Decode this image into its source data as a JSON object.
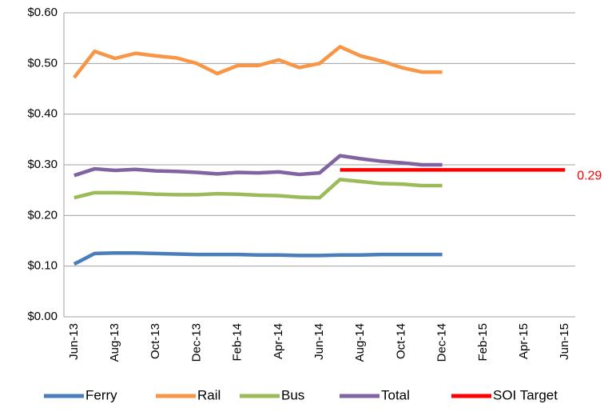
{
  "chart_data": {
    "type": "line",
    "categories": [
      "Jun-13",
      null,
      "Aug-13",
      null,
      "Oct-13",
      null,
      "Dec-13",
      null,
      "Feb-14",
      null,
      "Apr-14",
      null,
      "Jun-14",
      null,
      "Aug-14",
      null,
      "Oct-14",
      null,
      "Dec-14",
      null,
      "Feb-15",
      null,
      "Apr-15",
      null,
      "Jun-15"
    ],
    "series": [
      {
        "name": "Ferry",
        "color": "#4a7ebb",
        "values": [
          0.104,
          0.125,
          0.126,
          0.126,
          0.125,
          0.124,
          0.123,
          0.123,
          0.123,
          0.122,
          0.122,
          0.121,
          0.121,
          0.122,
          0.122,
          0.123,
          0.123,
          0.123,
          0.123,
          null,
          null,
          null,
          null,
          null,
          null
        ]
      },
      {
        "name": "Rail",
        "color": "#f79646",
        "values": [
          0.472,
          0.524,
          0.51,
          0.52,
          0.515,
          0.511,
          0.5,
          0.48,
          0.496,
          0.496,
          0.507,
          0.492,
          0.5,
          0.533,
          0.515,
          0.505,
          0.492,
          0.483,
          0.483,
          null,
          null,
          null,
          null,
          null,
          null
        ]
      },
      {
        "name": "Bus",
        "color": "#9bbb59",
        "values": [
          0.235,
          0.245,
          0.245,
          0.244,
          0.242,
          0.241,
          0.241,
          0.243,
          0.242,
          0.24,
          0.239,
          0.236,
          0.235,
          0.271,
          0.267,
          0.263,
          0.262,
          0.259,
          0.259,
          null,
          null,
          null,
          null,
          null,
          null
        ]
      },
      {
        "name": "Total",
        "color": "#8064a2",
        "values": [
          0.279,
          0.292,
          0.289,
          0.291,
          0.288,
          0.287,
          0.285,
          0.282,
          0.285,
          0.284,
          0.286,
          0.281,
          0.284,
          0.318,
          0.312,
          0.307,
          0.304,
          0.3,
          0.3,
          null,
          null,
          null,
          null,
          null,
          null
        ]
      },
      {
        "name": "SOI Target",
        "color": "#ff0000",
        "values": [
          null,
          null,
          null,
          null,
          null,
          null,
          null,
          null,
          null,
          null,
          null,
          null,
          null,
          0.29,
          0.29,
          0.29,
          0.29,
          0.29,
          0.29,
          0.29,
          0.29,
          0.29,
          0.29,
          0.29,
          0.29
        ]
      }
    ],
    "ylim": [
      0,
      0.6
    ],
    "yticks": [
      {
        "value": 0,
        "label": "$0.00"
      },
      {
        "value": 0.1,
        "label": "$0.10"
      },
      {
        "value": 0.2,
        "label": "$0.20"
      },
      {
        "value": 0.3,
        "label": "$0.30"
      },
      {
        "value": 0.4,
        "label": "$0.40"
      },
      {
        "value": 0.5,
        "label": "$0.50"
      },
      {
        "value": 0.6,
        "label": "$0.60"
      }
    ],
    "grid": true,
    "legend": "bottom"
  }
}
